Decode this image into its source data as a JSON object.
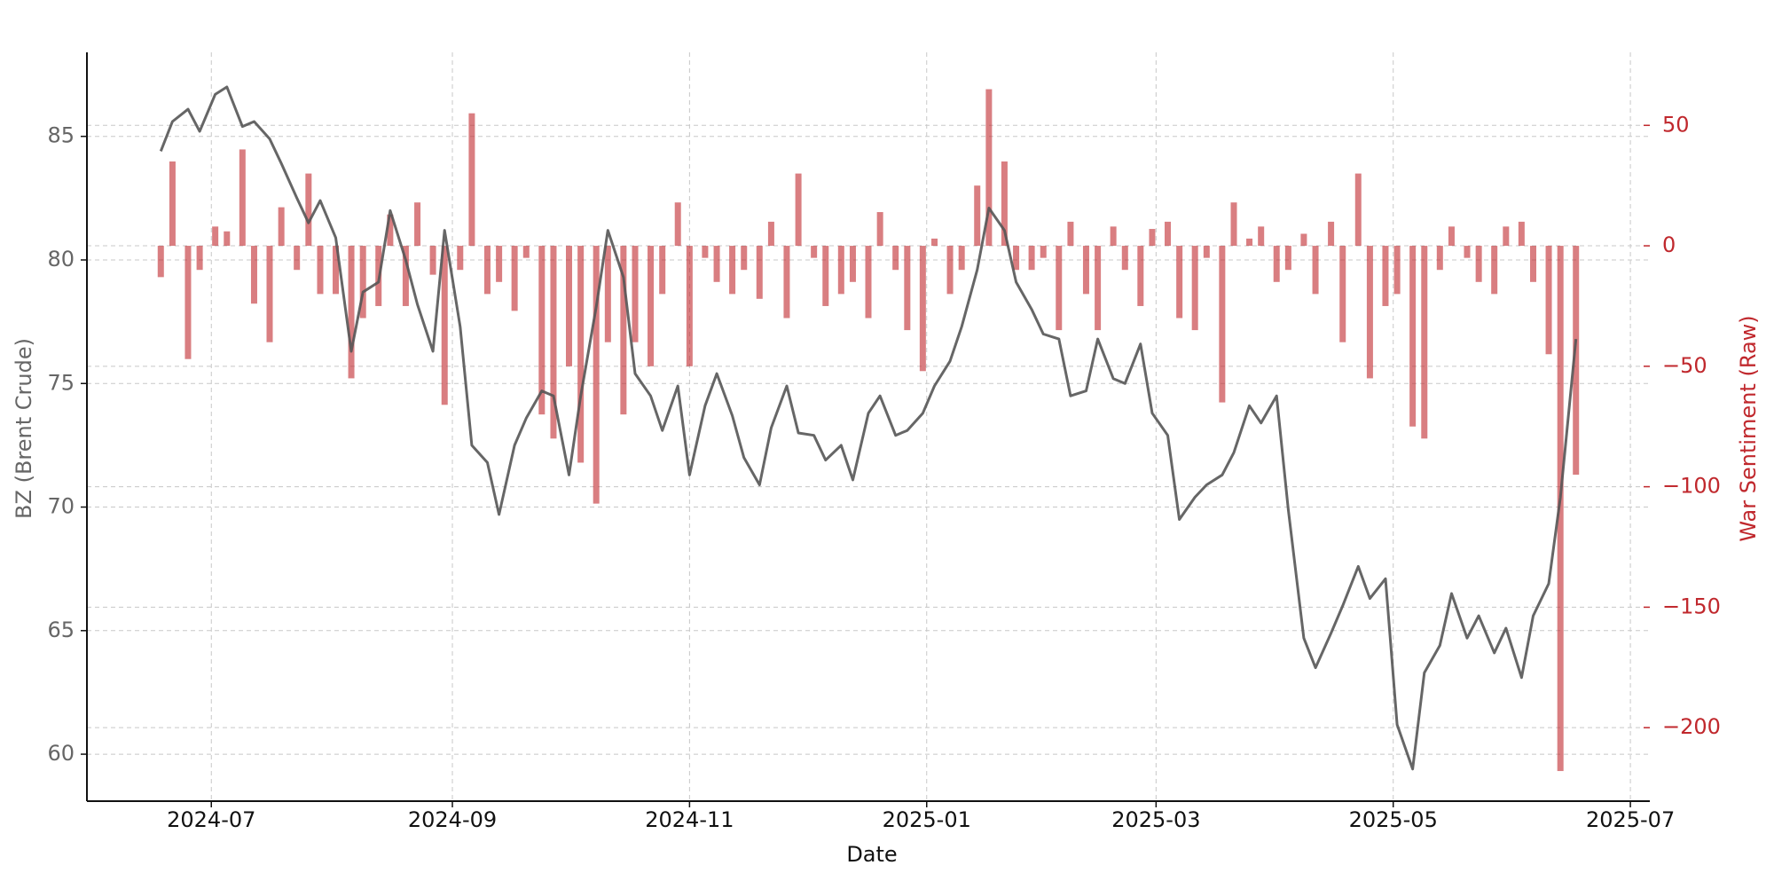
{
  "chart_data": {
    "type": "line",
    "x_label": "Date",
    "y_label": "BZ (Brent Crude)",
    "y2_label": "War Sentiment (Raw)",
    "x": [
      "2024-06-18",
      "2024-06-21",
      "2024-06-25",
      "2024-06-28",
      "2024-07-02",
      "2024-07-05",
      "2024-07-09",
      "2024-07-12",
      "2024-07-16",
      "2024-07-19",
      "2024-07-23",
      "2024-07-26",
      "2024-07-29",
      "2024-08-02",
      "2024-08-06",
      "2024-08-09",
      "2024-08-13",
      "2024-08-16",
      "2024-08-20",
      "2024-08-23",
      "2024-08-27",
      "2024-08-30",
      "2024-09-03",
      "2024-09-06",
      "2024-09-10",
      "2024-09-13",
      "2024-09-17",
      "2024-09-20",
      "2024-09-24",
      "2024-09-27",
      "2024-10-01",
      "2024-10-04",
      "2024-10-08",
      "2024-10-11",
      "2024-10-15",
      "2024-10-18",
      "2024-10-22",
      "2024-10-25",
      "2024-10-29",
      "2024-11-01",
      "2024-11-05",
      "2024-11-08",
      "2024-11-12",
      "2024-11-15",
      "2024-11-19",
      "2024-11-22",
      "2024-11-26",
      "2024-11-29",
      "2024-12-03",
      "2024-12-06",
      "2024-12-10",
      "2024-12-13",
      "2024-12-17",
      "2024-12-20",
      "2024-12-24",
      "2024-12-27",
      "2024-12-31",
      "2025-01-03",
      "2025-01-07",
      "2025-01-10",
      "2025-01-14",
      "2025-01-17",
      "2025-01-21",
      "2025-01-24",
      "2025-01-28",
      "2025-01-31",
      "2025-02-04",
      "2025-02-07",
      "2025-02-11",
      "2025-02-14",
      "2025-02-18",
      "2025-02-21",
      "2025-02-25",
      "2025-02-28",
      "2025-03-04",
      "2025-03-07",
      "2025-03-11",
      "2025-03-14",
      "2025-03-18",
      "2025-03-21",
      "2025-03-25",
      "2025-03-28",
      "2025-04-01",
      "2025-04-04",
      "2025-04-08",
      "2025-04-11",
      "2025-04-15",
      "2025-04-18",
      "2025-04-22",
      "2025-04-25",
      "2025-04-29",
      "2025-05-02",
      "2025-05-06",
      "2025-05-09",
      "2025-05-13",
      "2025-05-16",
      "2025-05-20",
      "2025-05-23",
      "2025-05-27",
      "2025-05-30",
      "2025-06-03",
      "2025-06-06",
      "2025-06-10",
      "2025-06-13",
      "2025-06-17"
    ],
    "series": [
      {
        "type": "line",
        "color": "#555555",
        "values": [
          84.4,
          85.6,
          86.1,
          85.2,
          86.7,
          87.0,
          85.4,
          85.6,
          84.9,
          83.9,
          82.5,
          81.5,
          82.4,
          80.9,
          76.3,
          78.7,
          79.1,
          82.0,
          80.0,
          78.2,
          76.3,
          81.2,
          77.3,
          72.5,
          71.8,
          69.7,
          72.5,
          73.6,
          74.7,
          74.5,
          71.3,
          74.5,
          78.1,
          81.2,
          79.3,
          75.4,
          74.5,
          73.1,
          74.9,
          71.3,
          74.1,
          75.4,
          73.7,
          72.0,
          70.9,
          73.2,
          74.9,
          73.0,
          72.9,
          71.9,
          72.5,
          71.1,
          73.8,
          74.5,
          72.9,
          73.1,
          73.8,
          74.9,
          75.9,
          77.3,
          79.6,
          82.1,
          81.2,
          79.1,
          78.0,
          77.0,
          76.8,
          74.5,
          74.7,
          76.8,
          75.2,
          75.0,
          76.6,
          73.8,
          72.9,
          69.5,
          70.4,
          70.9,
          71.3,
          72.2,
          74.1,
          73.4,
          74.5,
          69.9,
          64.7,
          63.5,
          64.9,
          66.0,
          67.6,
          66.3,
          67.1,
          61.2,
          59.4,
          63.3,
          64.4,
          66.5,
          64.7,
          65.6,
          64.1,
          65.1,
          63.1,
          65.6,
          66.9,
          70.4,
          76.8
        ]
      },
      {
        "type": "bar",
        "axis": "y2",
        "color": "#c0282d",
        "values": [
          -13,
          35,
          -47,
          -10,
          8,
          6,
          40,
          -24,
          -40,
          16,
          -10,
          30,
          -20,
          -20,
          -55,
          -30,
          -25,
          13,
          -25,
          18,
          -12,
          -66,
          -10,
          55,
          -20,
          -15,
          -27,
          -5,
          -70,
          -80,
          -50,
          -90,
          -107,
          -40,
          -70,
          -40,
          -50,
          -20,
          18,
          -50,
          -5,
          -15,
          -20,
          -10,
          -22,
          10,
          -30,
          30,
          -5,
          -25,
          -20,
          -15,
          -30,
          14,
          -10,
          -35,
          -52,
          3,
          -20,
          -10,
          25,
          65,
          35,
          -10,
          -10,
          -5,
          -35,
          10,
          -20,
          -35,
          8,
          -10,
          -25,
          7,
          10,
          -30,
          -35,
          -5,
          -65,
          18,
          3,
          8,
          -15,
          -10,
          5,
          -20,
          10,
          -40,
          30,
          -55,
          -25,
          -20,
          -75,
          -80,
          -10,
          8,
          -5,
          -15,
          -20,
          8,
          10,
          -15,
          -45,
          -218,
          -95
        ]
      }
    ],
    "xlim": [
      "2024-05-30",
      "2025-07-06"
    ],
    "xticks": [
      {
        "value": "2024-07-01",
        "label": "2024-07"
      },
      {
        "value": "2024-09-01",
        "label": "2024-09"
      },
      {
        "value": "2024-11-01",
        "label": "2024-11"
      },
      {
        "value": "2025-01-01",
        "label": "2025-01"
      },
      {
        "value": "2025-03-01",
        "label": "2025-03"
      },
      {
        "value": "2025-05-01",
        "label": "2025-05"
      },
      {
        "value": "2025-07-01",
        "label": "2025-07"
      }
    ],
    "ylim": [
      58.1,
      88.4
    ],
    "yticks": [
      60,
      65,
      70,
      75,
      80,
      85
    ],
    "y2lim": [
      -230.5,
      80.3
    ],
    "y2ticks": [
      {
        "value": -200,
        "label": "−200"
      },
      {
        "value": -150,
        "label": "−150"
      },
      {
        "value": -100,
        "label": "−100"
      },
      {
        "value": -50,
        "label": "−50"
      },
      0,
      50
    ],
    "grid": true,
    "y_label_color": "#666666",
    "y2_label_color": "#c0282d"
  }
}
